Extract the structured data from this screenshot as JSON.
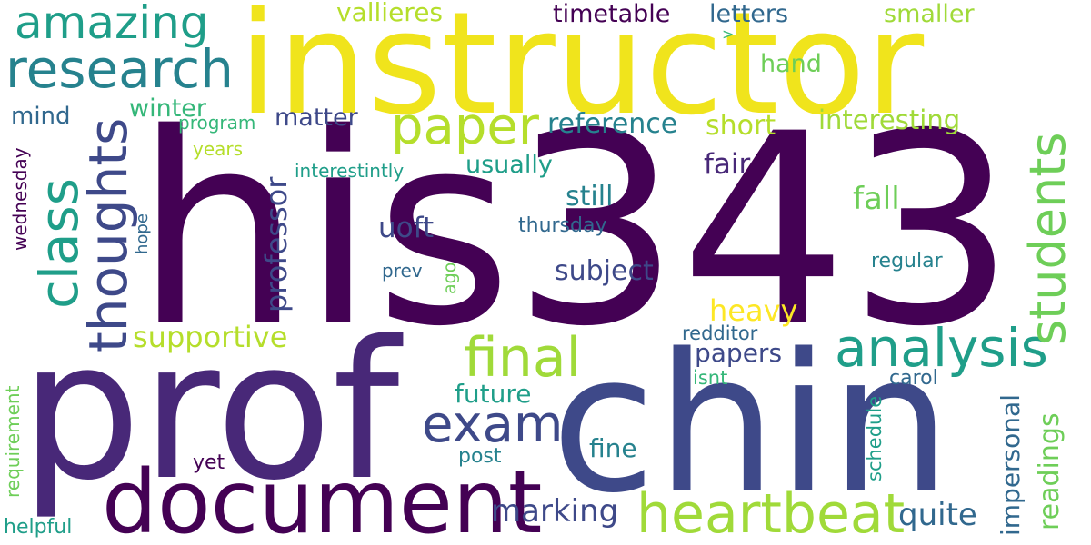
{
  "words": {
    "instructor": "instructor",
    "his343": "his343",
    "prof": "prof",
    "chin": "chin",
    "document": "document",
    "research": "research",
    "amazing": "amazing",
    "class": "class",
    "thoughts": "thoughts",
    "paper": "paper",
    "analysis": "analysis",
    "final": "final",
    "heartbeat": "heartbeat",
    "exam": "exam",
    "students": "students",
    "professor": "professor",
    "supportive": "supportive",
    "heavy": "heavy",
    "readings": "readings",
    "impersonal": "impersonal",
    "marking": "marking",
    "quite": "quite",
    "vallieres": "vallieres",
    "timetable": "timetable",
    "letters": "letters",
    "smaller": "smaller",
    "hand": "hand",
    "interesting": "interesting",
    "reference": "reference",
    "short": "short",
    "fair": "fair",
    "usually": "usually",
    "still": "still",
    "fall": "fall",
    "uoft": "uoft",
    "thursday": "thursday",
    "subject": "subject",
    "regular": "regular",
    "winter": "winter",
    "mind": "mind",
    "program": "program",
    "matter": "matter",
    "years": "years",
    "interestintly": "interestintly",
    "wednesday": "wednesday",
    "hope": "hope",
    "prev": "prev",
    "ago": "ago",
    "papers": "papers",
    "redditor": "redditor",
    "isnt": "isnt",
    "carol": "carol",
    "future": "future",
    "fine": "fine",
    "post": "post",
    "schedule": "schedule",
    "yet": "yet",
    "requirement": "requirement",
    "helpful": "helpful",
    "arrow": ">"
  },
  "colors": {
    "dark_purple": "#440154",
    "purple": "#482878",
    "indigo": "#3e4989",
    "blue": "#31688e",
    "teal": "#26828e",
    "green_teal": "#1f9e89",
    "green": "#35b779",
    "light_green": "#6ece58",
    "lime": "#b5de2b",
    "yellow": "#fde725"
  }
}
